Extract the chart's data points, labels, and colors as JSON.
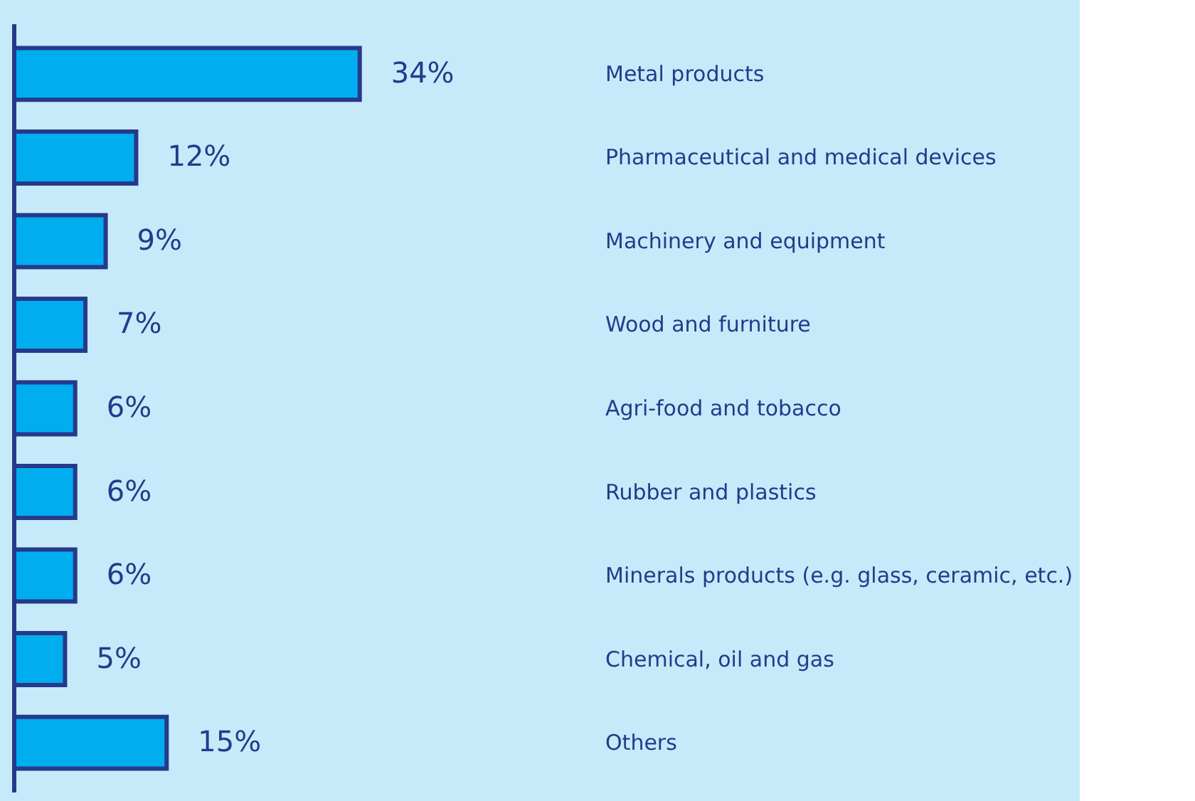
{
  "chart_data": {
    "type": "bar",
    "orientation": "horizontal",
    "categories": [
      "Metal products",
      "Pharmaceutical and medical devices",
      "Machinery and equipment",
      "Wood and furniture",
      "Agri-food and tobacco",
      "Rubber and plastics",
      "Minerals products (e.g. glass, ceramic, etc.)",
      "Chemical, oil and gas",
      "Others"
    ],
    "values": [
      34,
      12,
      9,
      7,
      6,
      6,
      6,
      5,
      15
    ],
    "value_labels": [
      "34%",
      "12%",
      "9%",
      "7%",
      "6%",
      "6%",
      "6%",
      "5%",
      "15%"
    ],
    "color": "#00aeef"
  }
}
